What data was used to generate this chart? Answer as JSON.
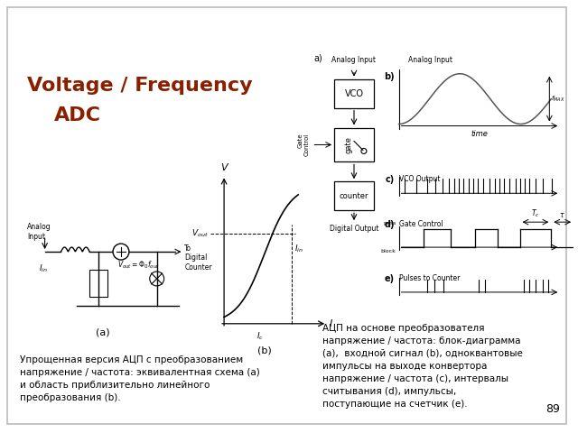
{
  "title_line1": "Voltage / Frequency",
  "title_line2": "ADC",
  "title_color": "#8B2000",
  "bg_color": "#FFFFFF",
  "border_color": "#BBBBBB",
  "text_bottom_left": "Упрощенная версия АЦП с преобразованием\nнапряжение / частота: эквивалентная схема (a)\nи область приблизительно линейного\nпреобразования (b).",
  "text_bottom_right": "АЦП на основе преобразователя\nнапряжение / частота: блок-диаграмма\n(a),  входной сигнал (b), одноквантовые\nимпульсы на выходе конвертора\nнапряжение / частота (c), интервалы\nсчитывания (d), импульсы,\nпоступающие на счетчик (e).",
  "page_number": "89"
}
